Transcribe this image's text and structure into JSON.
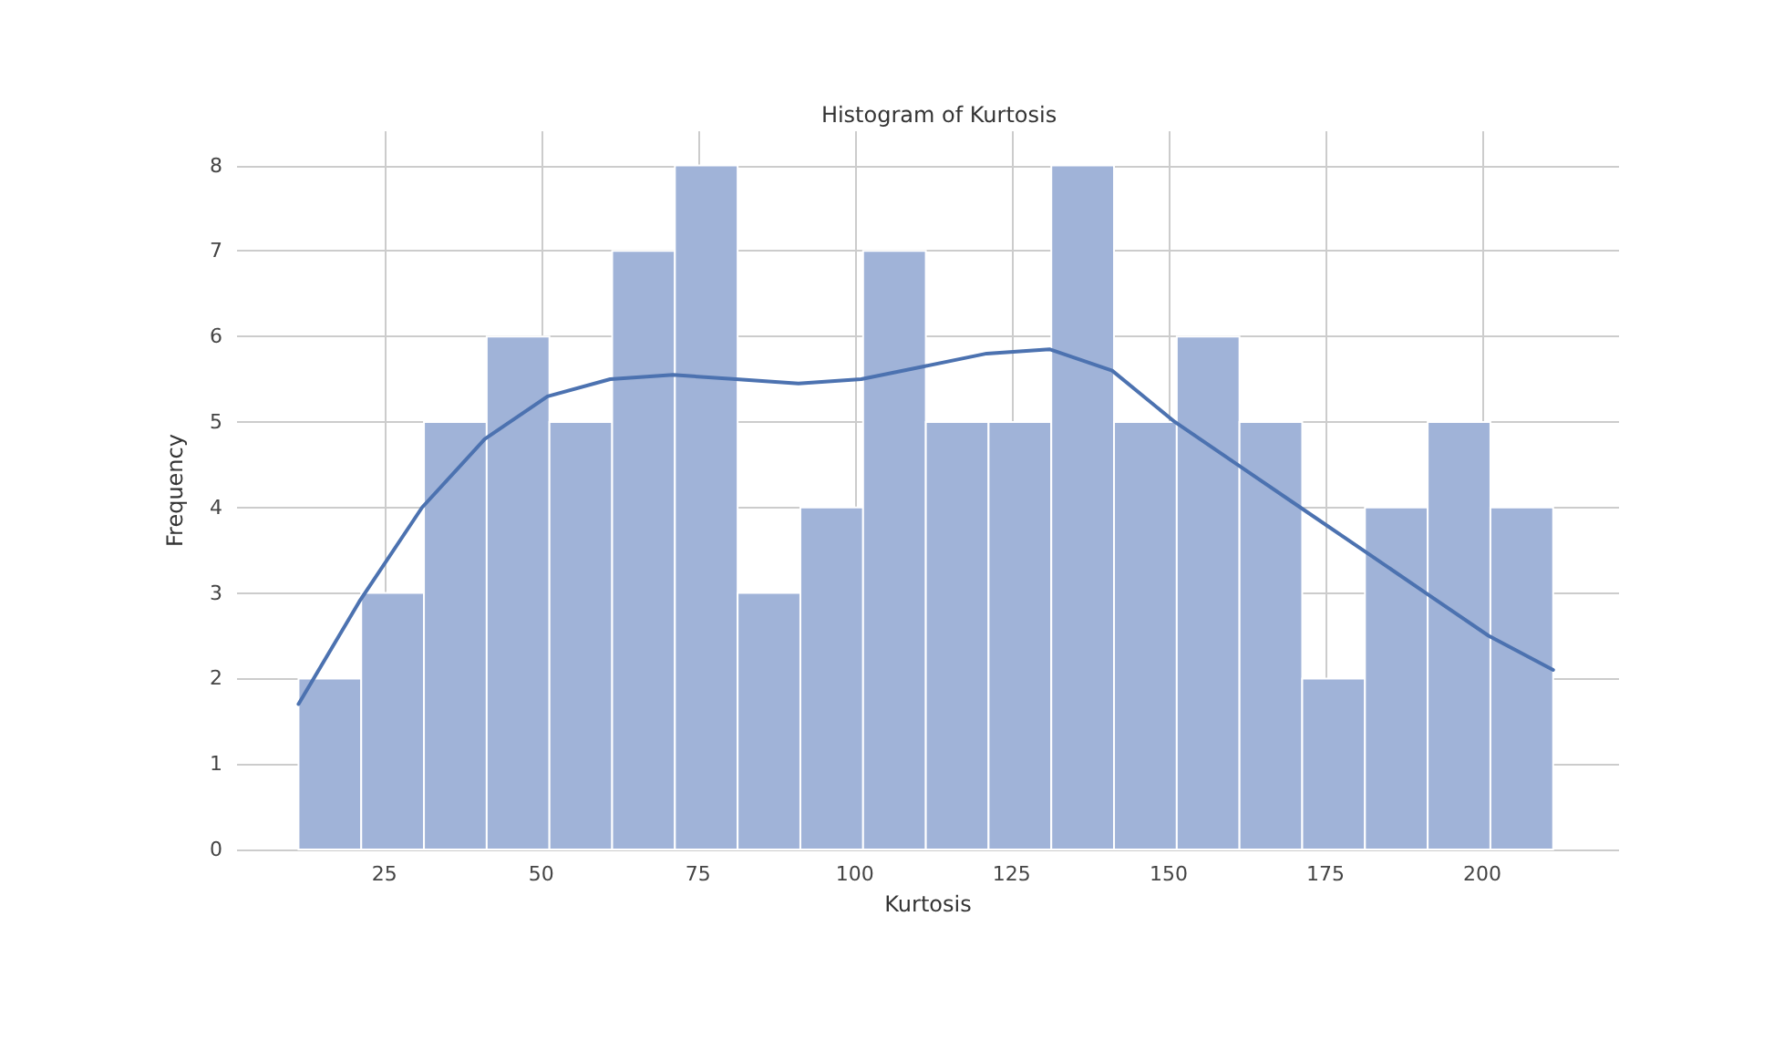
{
  "chart_data": {
    "type": "histogram",
    "title": "Histogram of Kurtosis",
    "xlabel": "Kurtosis",
    "ylabel": "Frequency",
    "bins": [
      11.3,
      21.3,
      31.3,
      41.3,
      51.3,
      61.3,
      71.3,
      81.3,
      91.3,
      101.3,
      111.3,
      121.3,
      131.3,
      141.3,
      151.3,
      161.3,
      171.3,
      181.3,
      191.3,
      201.3,
      211.3
    ],
    "values": [
      2,
      3,
      5,
      6,
      5,
      7,
      8,
      3,
      4,
      7,
      5,
      5,
      8,
      5,
      6,
      5,
      2,
      4,
      5,
      4
    ],
    "color": "#a0b3d8",
    "series": [
      {
        "type": "line",
        "color": "#4c72b0",
        "x": [
          11.3,
          21,
          31,
          41,
          51,
          61,
          71,
          81,
          91,
          101,
          111,
          121,
          131,
          141,
          151,
          161,
          171,
          181,
          191,
          201,
          211.3
        ],
        "values": [
          1.7,
          2.9,
          4.0,
          4.8,
          5.3,
          5.5,
          5.55,
          5.5,
          5.45,
          5.5,
          5.65,
          5.8,
          5.85,
          5.6,
          5.0,
          4.5,
          4.0,
          3.5,
          3.0,
          2.5,
          2.1
        ]
      }
    ],
    "xlim": [
      1.5,
      221.8
    ],
    "xticks": [
      25,
      50,
      75,
      100,
      125,
      150,
      175,
      200
    ],
    "ylim": [
      0,
      8.4
    ],
    "yticks": [
      0,
      1,
      2,
      3,
      4,
      5,
      6,
      7,
      8
    ],
    "grid": true,
    "marker": "none",
    "line_style": "solid"
  }
}
